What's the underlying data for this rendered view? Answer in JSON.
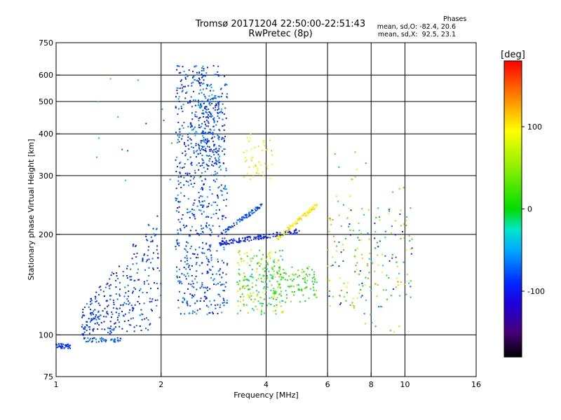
{
  "chart_data": {
    "type": "scatter",
    "title": "Tromsø 20171204 22:50:00-22:51:43",
    "subtitle": "RwPretec (8p)",
    "xlabel": "Frequency [MHz]",
    "ylabel": "Stationary phase Virtual Height [km]",
    "x_scale": "log",
    "y_scale": "log",
    "xlim": [
      1,
      16
    ],
    "ylim": [
      75,
      750
    ],
    "x_ticks": [
      "1",
      "2",
      "4",
      "6",
      "8",
      "10",
      "16"
    ],
    "y_ticks": [
      "75",
      "100",
      "200",
      "300",
      "400",
      "500",
      "600",
      "750"
    ],
    "grid": true,
    "colorbar": {
      "label": "[deg]",
      "range": [
        -180,
        180
      ],
      "ticks": [
        "100",
        "0",
        "-100"
      ]
    },
    "stats": {
      "heading": "Phases",
      "o_line": "mean, sd,O: -82.4, 20.6",
      "x_line": "mean, sd,X:  92.5, 23.1"
    },
    "clusters": [
      {
        "f": [
          1.0,
          1.1
        ],
        "h": [
          91,
          94
        ],
        "phase": [
          -95,
          -80
        ],
        "count": 40,
        "trace": "row"
      },
      {
        "f": [
          1.2,
          1.6
        ],
        "h": [
          95,
          98
        ],
        "phase": [
          -90,
          -60
        ],
        "count": 45,
        "trace": "row"
      },
      {
        "f": [
          1.18,
          2.0
        ],
        "h": [
          105,
          250
        ],
        "phase": [
          -110,
          -60
        ],
        "count": 320,
        "trace": "rise"
      },
      {
        "f": [
          2.2,
          3.1
        ],
        "h": [
          115,
          640
        ],
        "phase": [
          -110,
          -50
        ],
        "count": 750,
        "trace": "cloud"
      },
      {
        "f": [
          2.55,
          2.95
        ],
        "h": [
          320,
          520
        ],
        "phase": [
          -100,
          -60
        ],
        "count": 140,
        "trace": "cloud"
      },
      {
        "f": [
          2.95,
          5.0
        ],
        "h": [
          188,
          205
        ],
        "phase": [
          -105,
          -85
        ],
        "count": 130,
        "trace": "curve"
      },
      {
        "f": [
          3.05,
          3.9
        ],
        "h": [
          205,
          245
        ],
        "phase": [
          -100,
          -60
        ],
        "count": 70,
        "trace": "curve"
      },
      {
        "f": [
          3.45,
          4.25
        ],
        "h": [
          290,
          400
        ],
        "phase": [
          70,
          120
        ],
        "count": 45,
        "trace": "cloud"
      },
      {
        "f": [
          3.3,
          4.5
        ],
        "h": [
          115,
          180
        ],
        "phase": [
          -40,
          110
        ],
        "count": 210,
        "trace": "cloud"
      },
      {
        "f": [
          3.9,
          5.6
        ],
        "h": [
          125,
          160
        ],
        "phase": [
          -30,
          60
        ],
        "count": 110,
        "trace": "cloud"
      },
      {
        "f": [
          4.3,
          5.6
        ],
        "h": [
          195,
          245
        ],
        "phase": [
          80,
          120
        ],
        "count": 90,
        "trace": "curve"
      },
      {
        "f": [
          6.0,
          10.5
        ],
        "h": [
          120,
          240
        ],
        "phase": [
          -110,
          140
        ],
        "count": 170,
        "trace": "cloud"
      },
      {
        "f": [
          6.3,
          10.2
        ],
        "h": [
          100,
          360
        ],
        "phase": [
          -60,
          140
        ],
        "count": 40,
        "trace": "cloud"
      },
      {
        "f": [
          1.3,
          2.6
        ],
        "h": [
          260,
          640
        ],
        "phase": [
          -90,
          30
        ],
        "count": 20,
        "trace": "cloud"
      }
    ]
  }
}
